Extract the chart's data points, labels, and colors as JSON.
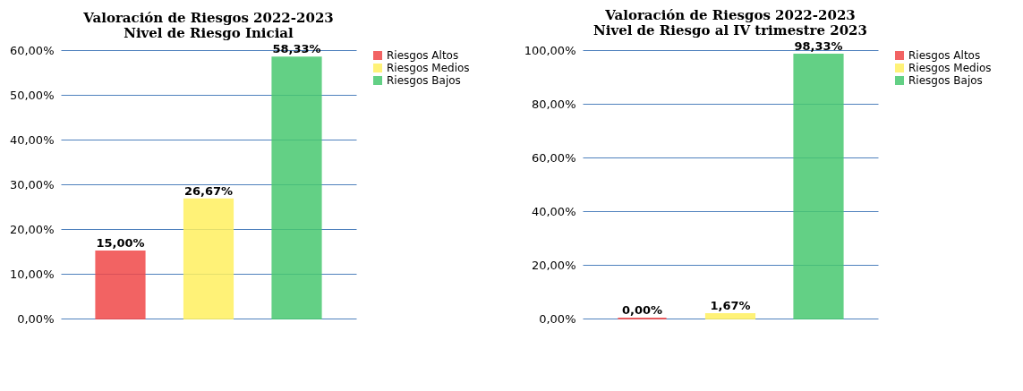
{
  "chart_data": [
    {
      "type": "bar",
      "title": [
        "Valoración de Riesgos 2022-2023",
        "Nivel de Riesgo Inicial"
      ],
      "categories": [
        null
      ],
      "series": [
        {
          "name": "Riesgos Altos",
          "color": "#f04848",
          "values": [
            15.0
          ],
          "value_labels": [
            "15,00%"
          ]
        },
        {
          "name": "Riesgos Medios",
          "color": "#fff060",
          "values": [
            26.67
          ],
          "value_labels": [
            "26,67%"
          ]
        },
        {
          "name": "Riesgos Bajos",
          "color": "#48c870",
          "values": [
            58.33
          ],
          "value_labels": [
            "58,33%"
          ]
        }
      ],
      "ylim": [
        0,
        60
      ],
      "yticks": [
        {
          "value": 0,
          "label": "0,00%"
        },
        {
          "value": 10,
          "label": "10,00%"
        },
        {
          "value": 20,
          "label": "20,00%"
        },
        {
          "value": 30,
          "label": "30,00%"
        },
        {
          "value": 40,
          "label": "40,00%"
        },
        {
          "value": 50,
          "label": "50,00%"
        },
        {
          "value": 60,
          "label": "60,00%"
        }
      ],
      "grid": "y",
      "legend": "right"
    },
    {
      "type": "bar",
      "title": [
        "Valoración de Riesgos 2022-2023",
        "Nivel de Riesgo al  IV trimestre 2023"
      ],
      "categories": [
        null
      ],
      "series": [
        {
          "name": "Riesgos Altos",
          "color": "#f04848",
          "values": [
            0.0
          ],
          "value_labels": [
            "0,00%"
          ]
        },
        {
          "name": "Riesgos Medios",
          "color": "#fff060",
          "values": [
            1.67
          ],
          "value_labels": [
            "1,67%"
          ]
        },
        {
          "name": "Riesgos Bajos",
          "color": "#48c870",
          "values": [
            98.33
          ],
          "value_labels": [
            "98,33%"
          ]
        }
      ],
      "ylim": [
        0,
        100
      ],
      "yticks": [
        {
          "value": 0,
          "label": "0,00%"
        },
        {
          "value": 20,
          "label": "20,00%"
        },
        {
          "value": 40,
          "label": "40,00%"
        },
        {
          "value": 60,
          "label": "60,00%"
        },
        {
          "value": 80,
          "label": "80,00%"
        },
        {
          "value": 100,
          "label": "100,00%"
        }
      ],
      "grid": "y",
      "legend": "right"
    }
  ]
}
